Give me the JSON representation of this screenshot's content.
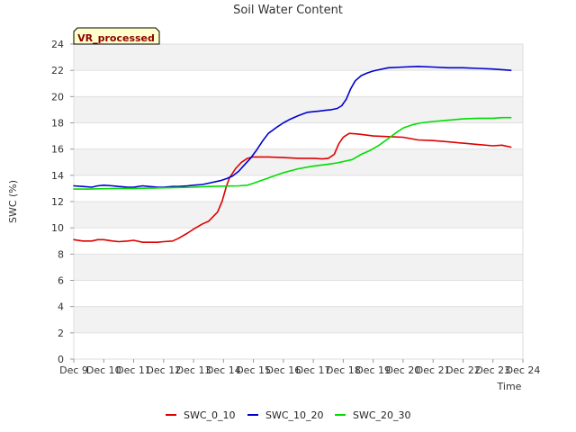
{
  "chart_data": {
    "type": "line",
    "title": "Soil Water Content",
    "xlabel": "Time",
    "ylabel": "SWC (%)",
    "badge": "VR_processed",
    "ylim": [
      0,
      24
    ],
    "yticks": [
      0,
      2,
      4,
      6,
      8,
      10,
      12,
      14,
      16,
      18,
      20,
      22,
      24
    ],
    "xlim": [
      0,
      15
    ],
    "xticks": [
      {
        "x": 0,
        "label": "Dec 9"
      },
      {
        "x": 1,
        "label": "Dec 10"
      },
      {
        "x": 2,
        "label": "Dec 11"
      },
      {
        "x": 3,
        "label": "Dec 12"
      },
      {
        "x": 4,
        "label": "Dec 13"
      },
      {
        "x": 5,
        "label": "Dec 14"
      },
      {
        "x": 6,
        "label": "Dec 15"
      },
      {
        "x": 7,
        "label": "Dec 16"
      },
      {
        "x": 8,
        "label": "Dec 17"
      },
      {
        "x": 9,
        "label": "Dec 18"
      },
      {
        "x": 10,
        "label": "Dec 19"
      },
      {
        "x": 11,
        "label": "Dec 20"
      },
      {
        "x": 12,
        "label": "Dec 21"
      },
      {
        "x": 13,
        "label": "Dec 22"
      },
      {
        "x": 14,
        "label": "Dec 23"
      },
      {
        "x": 15,
        "label": "Dec 24"
      }
    ],
    "grid": "horizontal bands",
    "legend_position": "bottom-center",
    "series": [
      {
        "name": "SWC_0_10",
        "color": "#dd0000",
        "x": [
          0.0,
          0.3,
          0.6,
          0.8,
          1.0,
          1.3,
          1.5,
          1.8,
          2.0,
          2.3,
          2.5,
          2.8,
          3.0,
          3.3,
          3.5,
          3.8,
          4.0,
          4.3,
          4.5,
          4.8,
          4.95,
          5.1,
          5.2,
          5.4,
          5.6,
          5.8,
          6.0,
          6.5,
          7.0,
          7.5,
          8.0,
          8.3,
          8.5,
          8.7,
          8.85,
          9.0,
          9.2,
          9.5,
          10.0,
          10.5,
          11.0,
          11.5,
          12.0,
          12.5,
          13.0,
          13.5,
          14.0,
          14.3,
          14.6
        ],
        "values": [
          9.1,
          9.0,
          9.0,
          9.1,
          9.1,
          9.0,
          8.95,
          9.0,
          9.05,
          8.9,
          8.9,
          8.9,
          8.95,
          9.0,
          9.2,
          9.6,
          9.9,
          10.3,
          10.5,
          11.2,
          12.0,
          13.2,
          13.8,
          14.5,
          15.0,
          15.3,
          15.4,
          15.4,
          15.35,
          15.3,
          15.3,
          15.25,
          15.3,
          15.6,
          16.4,
          16.9,
          17.2,
          17.15,
          17.0,
          16.95,
          16.9,
          16.7,
          16.65,
          16.55,
          16.45,
          16.35,
          16.25,
          16.3,
          16.15
        ]
      },
      {
        "name": "SWC_10_20",
        "color": "#0000cc",
        "x": [
          0.0,
          0.3,
          0.6,
          0.8,
          1.0,
          1.3,
          1.5,
          1.8,
          2.0,
          2.3,
          2.5,
          2.8,
          3.0,
          3.3,
          3.5,
          3.8,
          4.0,
          4.3,
          4.6,
          4.9,
          5.1,
          5.3,
          5.5,
          5.7,
          5.9,
          6.1,
          6.3,
          6.5,
          6.8,
          7.0,
          7.2,
          7.5,
          7.8,
          8.0,
          8.2,
          8.4,
          8.6,
          8.8,
          8.95,
          9.1,
          9.25,
          9.4,
          9.6,
          9.8,
          10.0,
          10.5,
          11.0,
          11.5,
          12.0,
          12.5,
          13.0,
          13.5,
          14.0,
          14.3,
          14.6
        ],
        "values": [
          13.2,
          13.15,
          13.1,
          13.2,
          13.25,
          13.2,
          13.15,
          13.1,
          13.1,
          13.2,
          13.15,
          13.1,
          13.1,
          13.15,
          13.15,
          13.2,
          13.25,
          13.3,
          13.45,
          13.6,
          13.75,
          13.95,
          14.3,
          14.8,
          15.3,
          15.9,
          16.6,
          17.2,
          17.7,
          18.0,
          18.25,
          18.55,
          18.8,
          18.85,
          18.9,
          18.95,
          19.0,
          19.1,
          19.3,
          19.8,
          20.6,
          21.2,
          21.6,
          21.8,
          21.95,
          22.2,
          22.25,
          22.3,
          22.25,
          22.2,
          22.2,
          22.15,
          22.1,
          22.05,
          22.0
        ]
      },
      {
        "name": "SWC_20_30",
        "color": "#00dd00",
        "x": [
          0.0,
          0.5,
          1.0,
          1.5,
          2.0,
          2.5,
          3.0,
          3.5,
          4.0,
          4.5,
          5.0,
          5.5,
          5.8,
          6.0,
          6.5,
          7.0,
          7.5,
          8.0,
          8.5,
          8.8,
          9.0,
          9.3,
          9.6,
          9.9,
          10.2,
          10.5,
          10.8,
          11.0,
          11.3,
          11.6,
          12.0,
          12.5,
          13.0,
          13.5,
          14.0,
          14.3,
          14.6
        ],
        "values": [
          12.95,
          12.95,
          12.98,
          13.0,
          13.0,
          13.02,
          13.05,
          13.08,
          13.1,
          13.15,
          13.18,
          13.2,
          13.25,
          13.4,
          13.8,
          14.2,
          14.5,
          14.7,
          14.85,
          14.95,
          15.05,
          15.2,
          15.6,
          15.9,
          16.3,
          16.8,
          17.3,
          17.6,
          17.85,
          18.0,
          18.1,
          18.2,
          18.3,
          18.35,
          18.35,
          18.4,
          18.4
        ]
      }
    ]
  }
}
